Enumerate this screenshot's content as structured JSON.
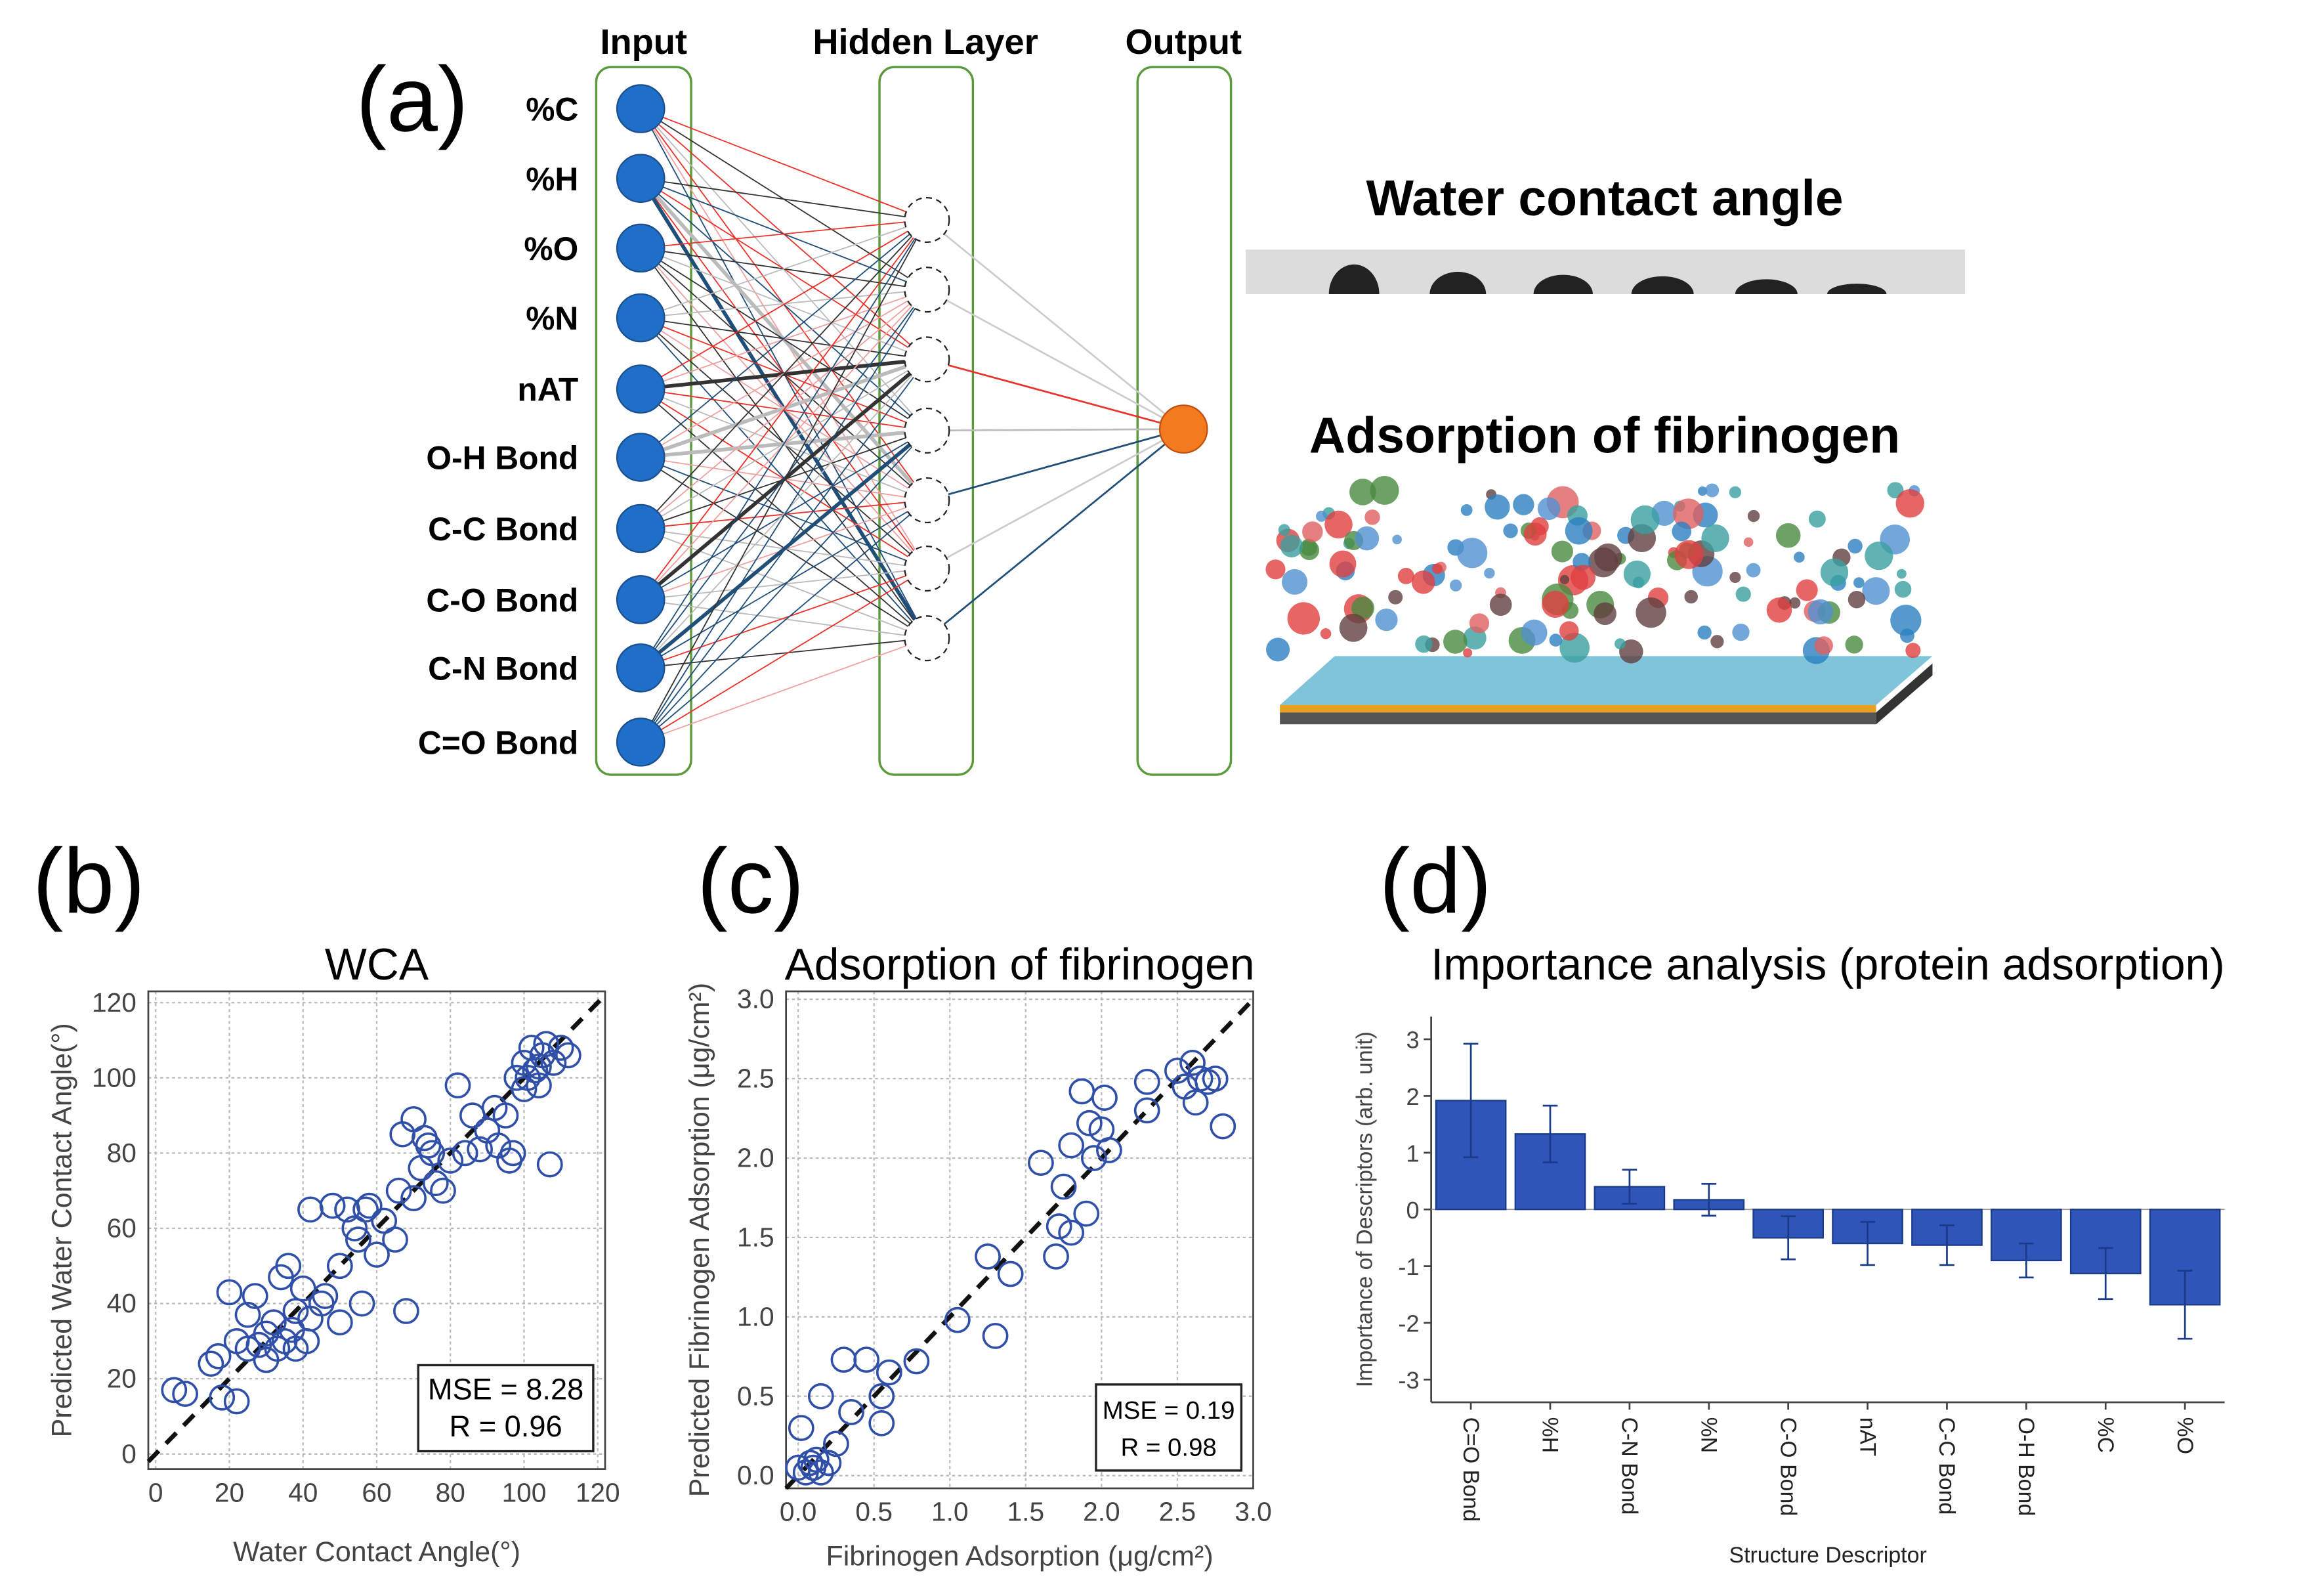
{
  "diagram": {
    "panel": "(a)",
    "layers": [
      "Input",
      "Hidden Layer",
      "Output"
    ],
    "inputs": [
      "%C",
      "%H",
      "%O",
      "%N",
      "nAT",
      "O-H Bond",
      "C-C Bond",
      "C-O Bond",
      "C-N Bond",
      "C=O Bond"
    ],
    "images": [
      "Water contact angle",
      "Adsorption of fibrinogen"
    ]
  },
  "chart_data": [
    {
      "type": "scatter",
      "panel": "(b)",
      "title": "WCA",
      "x_label": "Water Contact Angle(°)",
      "y_label": "Predicted Water Contact Angle(°)",
      "color": "#2f4fa8",
      "grid": true,
      "annotation": [
        "MSE = 8.28",
        "R = 0.96"
      ],
      "xlim": [
        -2,
        122
      ],
      "ylim": [
        -4,
        123
      ],
      "xticks": [
        0,
        20,
        40,
        60,
        80,
        100,
        120
      ],
      "yticks": [
        0,
        20,
        40,
        60,
        80,
        100,
        120
      ],
      "x": [
        5,
        8,
        15,
        17,
        18,
        20,
        22,
        22,
        25,
        25,
        27,
        28,
        30,
        30,
        32,
        33,
        34,
        35,
        36,
        37,
        38,
        38,
        40,
        41,
        42,
        42,
        45,
        46,
        48,
        50,
        50,
        52,
        54,
        55,
        56,
        57,
        58,
        60,
        62,
        65,
        66,
        67,
        68,
        70,
        70,
        72,
        73,
        74,
        75,
        76,
        78,
        80,
        82,
        84,
        86,
        88,
        90,
        92,
        93,
        95,
        96,
        97,
        98,
        100,
        100,
        102,
        103,
        104,
        105,
        106,
        107,
        108,
        110,
        112,
        104,
        101
      ],
      "values": [
        17,
        16,
        24,
        26,
        15,
        43,
        14,
        30,
        28,
        37,
        42,
        29,
        32,
        25,
        35,
        28,
        47,
        30,
        50,
        33,
        38,
        28,
        44,
        30,
        36,
        65,
        40,
        42,
        66,
        35,
        50,
        65,
        60,
        57,
        40,
        65,
        66,
        53,
        62,
        57,
        70,
        85,
        38,
        89,
        68,
        76,
        84,
        82,
        80,
        72,
        70,
        78,
        98,
        80,
        90,
        81,
        86,
        92,
        82,
        90,
        78,
        80,
        100,
        104,
        97,
        108,
        102,
        98,
        106,
        109,
        77,
        104,
        108,
        106,
        103,
        100
      ]
    },
    {
      "type": "scatter",
      "panel": "(c)",
      "title": "Adsorption of fibrinogen",
      "x_label": "Fibrinogen Adsorption (μg/cm²)",
      "y_label": "Predicted Fibrinogen Adsorption (μg/cm²)",
      "color": "#2f4fa8",
      "grid": true,
      "annotation": [
        "MSE = 0.19",
        "R = 0.98"
      ],
      "xlim": [
        -0.08,
        3.0
      ],
      "ylim": [
        -0.08,
        3.05
      ],
      "xticks": [
        {
          "value": 0,
          "label": "0.0"
        },
        0.5,
        {
          "value": 1,
          "label": "1.0"
        },
        1.5,
        {
          "value": 2,
          "label": "2.0"
        },
        2.5,
        {
          "value": 3,
          "label": "3.0"
        }
      ],
      "yticks": [
        {
          "value": 0,
          "label": "0.0"
        },
        0.5,
        {
          "value": 1,
          "label": "1.0"
        },
        1.5,
        {
          "value": 2,
          "label": "2.0"
        },
        2.5,
        {
          "value": 3,
          "label": "3.0"
        }
      ],
      "x": [
        0,
        0.02,
        0.05,
        0.08,
        0.1,
        0.12,
        0.15,
        0.15,
        0.2,
        0.25,
        0.3,
        0.35,
        0.45,
        0.55,
        0.55,
        0.6,
        0.78,
        1.05,
        1.25,
        1.3,
        1.4,
        1.6,
        1.7,
        1.72,
        1.75,
        1.8,
        1.8,
        1.87,
        1.9,
        1.92,
        1.95,
        2.0,
        2.02,
        2.05,
        2.3,
        2.3,
        2.5,
        2.55,
        2.6,
        2.62,
        2.65,
        2.7,
        2.75,
        2.8
      ],
      "values": [
        0.05,
        0.3,
        0.02,
        0.08,
        0.05,
        0.1,
        0.5,
        0.02,
        0.08,
        0.2,
        0.73,
        0.4,
        0.73,
        0.5,
        0.33,
        0.65,
        0.72,
        0.98,
        1.38,
        0.88,
        1.27,
        1.97,
        1.38,
        1.57,
        1.82,
        1.53,
        2.08,
        2.42,
        1.65,
        2.22,
        2.0,
        2.18,
        2.38,
        2.05,
        2.3,
        2.48,
        2.55,
        2.45,
        2.6,
        2.35,
        2.5,
        2.48,
        2.5,
        2.2
      ]
    },
    {
      "type": "bar",
      "panel": "(d)",
      "title": "Importance analysis (protein adsorption)",
      "x_label": "Structure Descriptor",
      "y_label": "Importance of Descriptors (arb. unit)",
      "color": "#2f55b8",
      "grid": false,
      "ylim": [
        -3.4,
        3.4
      ],
      "yticks": [
        -3,
        -2,
        -1,
        0,
        1,
        2,
        3
      ],
      "categories": [
        "C=O Bond",
        "%H",
        "C-N Bond",
        "%N",
        "C-O Bond",
        "nAT",
        "C-C Bond",
        "O-H Bond",
        "%C",
        "%O"
      ],
      "values": [
        1.92,
        1.33,
        0.4,
        0.17,
        -0.5,
        -0.6,
        -0.63,
        -0.9,
        -1.13,
        -1.68
      ],
      "errors": [
        1.0,
        0.5,
        0.3,
        0.28,
        0.38,
        0.38,
        0.35,
        0.3,
        0.45,
        0.6
      ]
    }
  ]
}
